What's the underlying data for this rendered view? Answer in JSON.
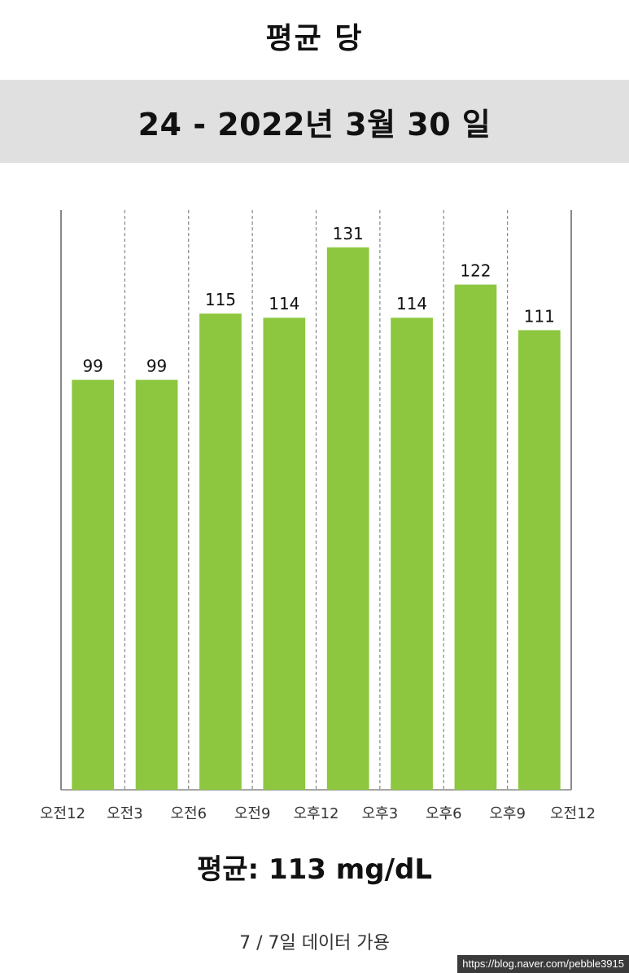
{
  "header": {
    "title": "평균 당",
    "date_range": "24 - 2022년 3월 30 일"
  },
  "summary": {
    "average": "평균: 113 mg/dL",
    "availability": "7 / 7일 데이터 가용"
  },
  "watermark": "https://blog.naver.com/pebble3915",
  "colors": {
    "bar": "#8dc63f",
    "band": "#e0e0e0",
    "axis": "#888888",
    "grid": "#888888"
  },
  "chart_data": {
    "type": "bar",
    "categories": [
      "오전12",
      "오전3",
      "오전6",
      "오전9",
      "오후12",
      "오후3",
      "오후6",
      "오후9"
    ],
    "tick_labels": [
      "오전12",
      "오전3",
      "오전6",
      "오전9",
      "오후12",
      "오후3",
      "오후6",
      "오후9",
      "오전12"
    ],
    "values": [
      99,
      99,
      115,
      114,
      131,
      114,
      122,
      111
    ],
    "title": "평균 당",
    "xlabel": "",
    "ylabel": "",
    "ylim": [
      0,
      140
    ],
    "grid": true,
    "grid_style": "dashed vertical"
  }
}
